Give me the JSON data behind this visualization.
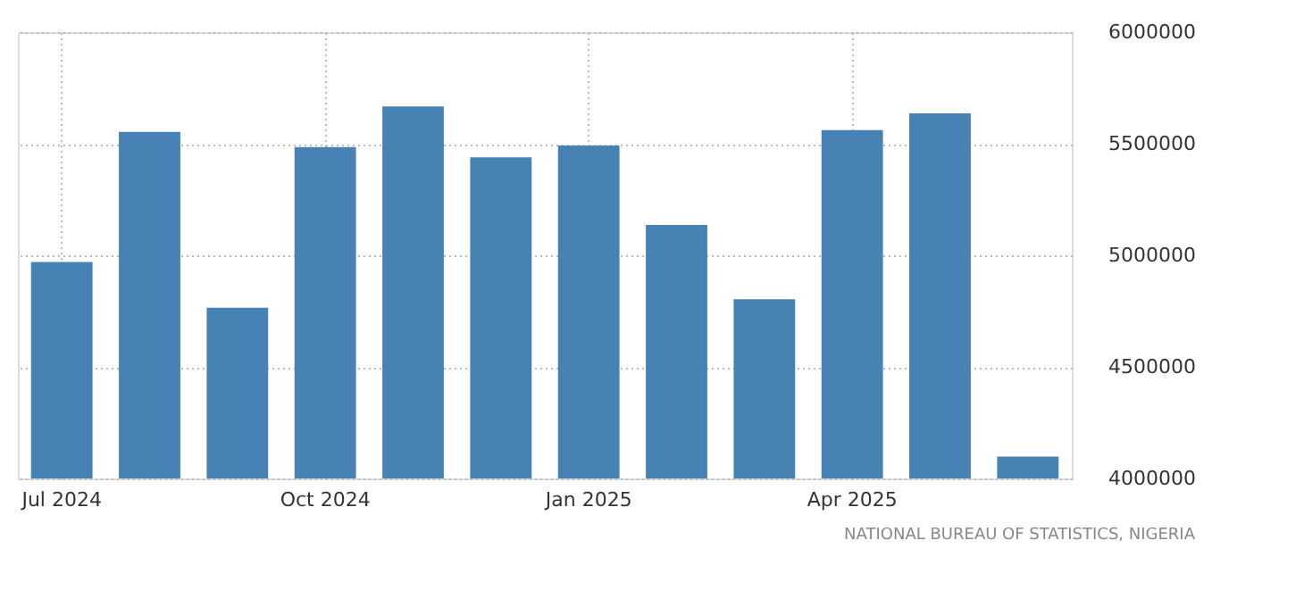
{
  "chart_data": {
    "type": "bar",
    "categories": [
      "Jul 2024",
      null,
      null,
      "Oct 2024",
      null,
      null,
      "Jan 2025",
      null,
      null,
      "Apr 2025",
      null,
      null
    ],
    "values": [
      4970000,
      5553000,
      4765000,
      5485000,
      5667000,
      5439000,
      5492000,
      5136000,
      4803000,
      5561000,
      5636000,
      4098000
    ],
    "color": "#4682b4",
    "ylim": [
      4000000,
      6000000
    ],
    "yticks": [
      4000000,
      4500000,
      5000000,
      5500000,
      6000000
    ],
    "grid": true,
    "annotations": [
      "NATIONAL BUREAU OF STATISTICS, NIGERIA"
    ]
  }
}
